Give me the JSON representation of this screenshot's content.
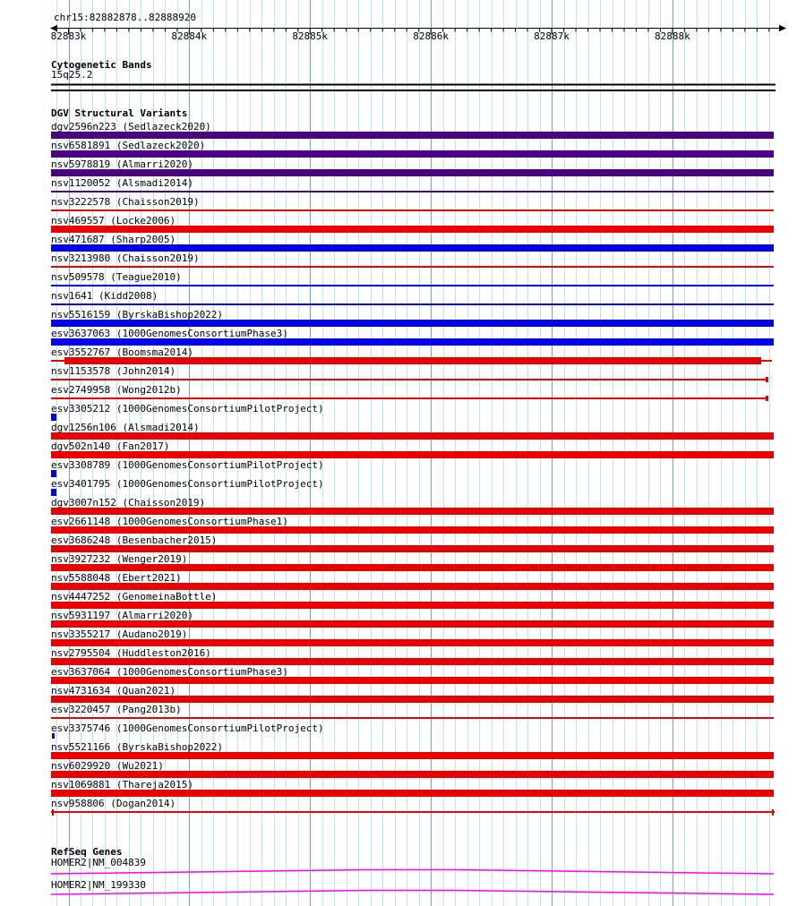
{
  "region": {
    "title": "chr15:82882878..82888920",
    "chromosome": "chr15",
    "start": 82882878,
    "end": 82888920
  },
  "ruler": {
    "ticks": [
      {
        "bp": 82883000,
        "label": "82883k"
      },
      {
        "bp": 82884000,
        "label": "82884k"
      },
      {
        "bp": 82885000,
        "label": "82885k"
      },
      {
        "bp": 82886000,
        "label": "82886k"
      },
      {
        "bp": 82887000,
        "label": "82887k"
      },
      {
        "bp": 82888000,
        "label": "82888k"
      }
    ]
  },
  "sections": {
    "cytogenetic": {
      "header": "Cytogenetic Bands",
      "band_label": "15q25.2"
    },
    "dgv": {
      "header": "DGV Structural Variants",
      "variants": [
        {
          "label": "dgv2596n223 (Sedlazeck2020)",
          "style": "bar",
          "color": "purple"
        },
        {
          "label": "nsv6581891 (Sedlazeck2020)",
          "style": "bar",
          "color": "purple"
        },
        {
          "label": "nsv5978819 (Almarri2020)",
          "style": "bar",
          "color": "purple"
        },
        {
          "label": "nsv1120052 (Alsmadi2014)",
          "style": "line",
          "color": "purple"
        },
        {
          "label": "nsv3222578 (Chaisson2019)",
          "style": "line",
          "color": "red"
        },
        {
          "label": "nsv469557 (Locke2006)",
          "style": "bar",
          "color": "red"
        },
        {
          "label": "nsv471687 (Sharp2005)",
          "style": "bar",
          "color": "blue"
        },
        {
          "label": "nsv3213980 (Chaisson2019)",
          "style": "line",
          "color": "red"
        },
        {
          "label": "nsv509578 (Teague2010)",
          "style": "line",
          "color": "blue"
        },
        {
          "label": "nsv1641 (Kidd2008)",
          "style": "line",
          "color": "blue"
        },
        {
          "label": "nsv5516159 (ByrskaBishop2022)",
          "style": "bar",
          "color": "blue"
        },
        {
          "label": "esv3637063 (1000GenomesConsortiumPhase3)",
          "style": "bar",
          "color": "blue"
        },
        {
          "label": "esv3552767 (Boomsma2014)",
          "style": "inset-bar",
          "color": "red"
        },
        {
          "label": "nsv1153578 (John2014)",
          "style": "line-rcap",
          "color": "red"
        },
        {
          "label": "esv2749958 (Wong2012b)",
          "style": "line-rcap",
          "color": "red"
        },
        {
          "label": "esv3305212 (1000GenomesConsortiumPilotProject)",
          "style": "point",
          "color": "blue"
        },
        {
          "label": "dgv1256n106 (Alsmadi2014)",
          "style": "bar",
          "color": "red"
        },
        {
          "label": "dgv502n140 (Fan2017)",
          "style": "bar",
          "color": "red"
        },
        {
          "label": "esv3308789 (1000GenomesConsortiumPilotProject)",
          "style": "point",
          "color": "blue"
        },
        {
          "label": "esv3401795 (1000GenomesConsortiumPilotProject)",
          "style": "point",
          "color": "blue"
        },
        {
          "label": "dgv3007n152 (Chaisson2019)",
          "style": "bar",
          "color": "red"
        },
        {
          "label": "esv2661148 (1000GenomesConsortiumPhase1)",
          "style": "bar",
          "color": "red"
        },
        {
          "label": "esv3686248 (Besenbacher2015)",
          "style": "bar",
          "color": "red"
        },
        {
          "label": "nsv3927232 (Wenger2019)",
          "style": "bar",
          "color": "red"
        },
        {
          "label": "nsv5588048 (Ebert2021)",
          "style": "bar",
          "color": "red"
        },
        {
          "label": "nsv4447252 (GenomeinaBottle)",
          "style": "bar",
          "color": "red"
        },
        {
          "label": "nsv5931197 (Almarri2020)",
          "style": "bar",
          "color": "red"
        },
        {
          "label": "nsv3355217 (Audano2019)",
          "style": "bar",
          "color": "red"
        },
        {
          "label": "nsv2795504 (Huddleston2016)",
          "style": "bar",
          "color": "red"
        },
        {
          "label": "esv3637064 (1000GenomesConsortiumPhase3)",
          "style": "bar",
          "color": "red"
        },
        {
          "label": "nsv4731634 (Quan2021)",
          "style": "bar",
          "color": "red"
        },
        {
          "label": "esv3220457 (Pang2013b)",
          "style": "line",
          "color": "red"
        },
        {
          "label": "esv3375746 (1000GenomesConsortiumPilotProject)",
          "style": "point-sm",
          "color": "blue"
        },
        {
          "label": "nsv5521166 (ByrskaBishop2022)",
          "style": "bar",
          "color": "red"
        },
        {
          "label": "nsv6029920 (Wu2021)",
          "style": "bar",
          "color": "red"
        },
        {
          "label": "nsv1069881 (Thareja2015)",
          "style": "bar",
          "color": "red"
        },
        {
          "label": "nsv958806 (Dogan2014)",
          "style": "line-caps",
          "color": "red"
        }
      ]
    },
    "refseq": {
      "header": "RefSeq Genes",
      "genes": [
        {
          "label": "HOMER2|NM_004839"
        },
        {
          "label": "HOMER2|NM_199330"
        }
      ]
    }
  },
  "colors": {
    "grid_light": "#b5e7ea",
    "grid_dark": "#63a9cc",
    "purple": "#4b0082",
    "red": "#e80000",
    "blue": "#0000e8",
    "magenta": "#ff00ff",
    "axis": "#000000",
    "text": "#000000"
  }
}
